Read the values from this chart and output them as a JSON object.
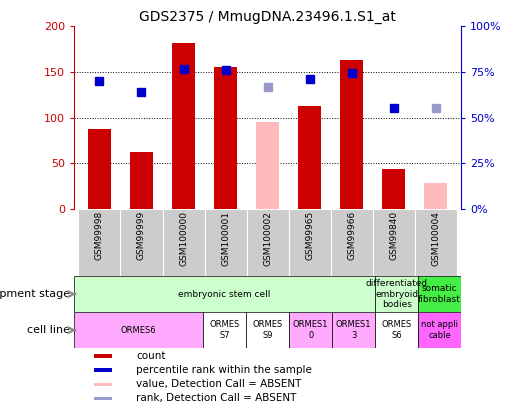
{
  "title": "GDS2375 / MmugDNA.23496.1.S1_at",
  "samples": [
    "GSM99998",
    "GSM99999",
    "GSM100000",
    "GSM100001",
    "GSM100002",
    "GSM99965",
    "GSM99966",
    "GSM99840",
    "GSM100004"
  ],
  "bar_values": [
    88,
    62,
    182,
    155,
    null,
    113,
    163,
    44,
    null
  ],
  "bar_absent_values": [
    null,
    null,
    null,
    null,
    95,
    null,
    null,
    null,
    28
  ],
  "rank_values": [
    70,
    64,
    76.5,
    76,
    null,
    71,
    74.5,
    55.5,
    null
  ],
  "rank_absent_values": [
    null,
    null,
    null,
    null,
    66.5,
    null,
    null,
    null,
    55
  ],
  "bar_color": "#cc0000",
  "bar_absent_color": "#ffbbbb",
  "rank_color": "#0000cc",
  "rank_absent_color": "#9999cc",
  "ylim_left": [
    0,
    200
  ],
  "ylim_right": [
    0,
    100
  ],
  "yticks_left": [
    0,
    50,
    100,
    150,
    200
  ],
  "yticks_right": [
    0,
    25,
    50,
    75,
    100
  ],
  "ytick_labels_left": [
    "0",
    "50",
    "100",
    "150",
    "200"
  ],
  "ytick_labels_right": [
    "0%",
    "25%",
    "50%",
    "75%",
    "100%"
  ],
  "development_stage_groups": [
    {
      "label": "embryonic stem cell",
      "start": 0,
      "end": 7,
      "color": "#ccffcc"
    },
    {
      "label": "differentiated\nembryoid\nbodies",
      "start": 7,
      "end": 8,
      "color": "#ccffcc"
    },
    {
      "label": "somatic\nfibroblast",
      "start": 8,
      "end": 9,
      "color": "#44ee44"
    }
  ],
  "cell_line_groups": [
    {
      "label": "ORMES6",
      "start": 0,
      "end": 3,
      "color": "#ffaaff"
    },
    {
      "label": "ORMES\nS7",
      "start": 3,
      "end": 4,
      "color": "#ffffff"
    },
    {
      "label": "ORMES\nS9",
      "start": 4,
      "end": 5,
      "color": "#ffffff"
    },
    {
      "label": "ORMES1\n0",
      "start": 5,
      "end": 6,
      "color": "#ffaaff"
    },
    {
      "label": "ORMES1\n3",
      "start": 6,
      "end": 7,
      "color": "#ffaaff"
    },
    {
      "label": "ORMES\nS6",
      "start": 7,
      "end": 8,
      "color": "#ffffff"
    },
    {
      "label": "not appli\ncable",
      "start": 8,
      "end": 9,
      "color": "#ff66ff"
    }
  ],
  "legend_items": [
    {
      "label": "count",
      "color": "#cc0000"
    },
    {
      "label": "percentile rank within the sample",
      "color": "#0000cc"
    },
    {
      "label": "value, Detection Call = ABSENT",
      "color": "#ffbbbb"
    },
    {
      "label": "rank, Detection Call = ABSENT",
      "color": "#9999cc"
    }
  ],
  "figsize": [
    5.3,
    4.05
  ],
  "dpi": 100
}
